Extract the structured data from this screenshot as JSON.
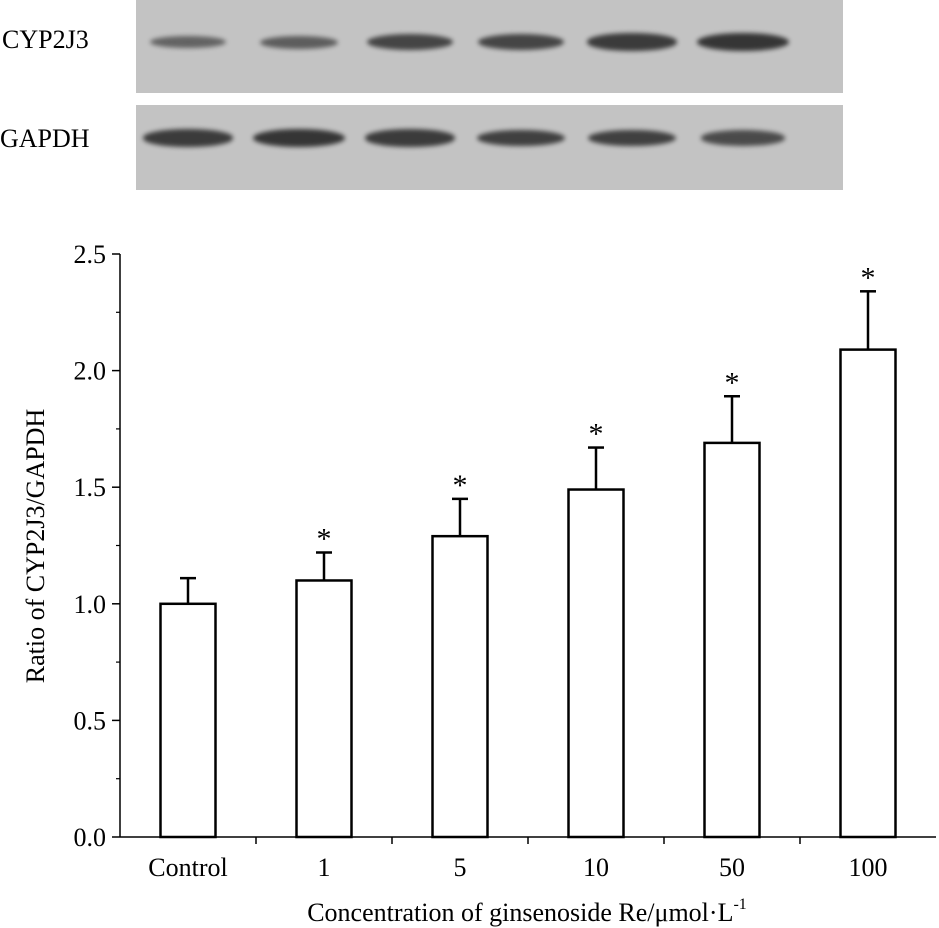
{
  "blot": {
    "rows": [
      {
        "label": "CYP2J3",
        "band_intensity": [
          0.45,
          0.5,
          0.75,
          0.75,
          0.85,
          0.9
        ]
      },
      {
        "label": "GAPDH",
        "band_intensity": [
          0.85,
          0.9,
          0.85,
          0.8,
          0.8,
          0.7
        ]
      }
    ]
  },
  "chart_data": {
    "type": "bar",
    "categories": [
      "Control",
      "1",
      "5",
      "10",
      "50",
      "100"
    ],
    "series": [
      {
        "values": [
          1.0,
          1.1,
          1.29,
          1.49,
          1.69,
          2.09
        ],
        "error": [
          0.11,
          0.12,
          0.16,
          0.18,
          0.2,
          0.25
        ],
        "significance": [
          "",
          "*",
          "*",
          "*",
          "*",
          "*"
        ]
      }
    ],
    "xlabel": "Concentration of ginsenoside Re/μmol·L",
    "xlabel_superscript": "-1",
    "ylabel": "Ratio of CYP2J3/GAPDH",
    "ylim": [
      0,
      2.5
    ],
    "yticks": [
      "0.0",
      "0.5",
      "1.0",
      "1.5",
      "2.0",
      "2.5"
    ],
    "grid": false,
    "bar_fill": "#ffffff",
    "bar_stroke": "#000000"
  }
}
